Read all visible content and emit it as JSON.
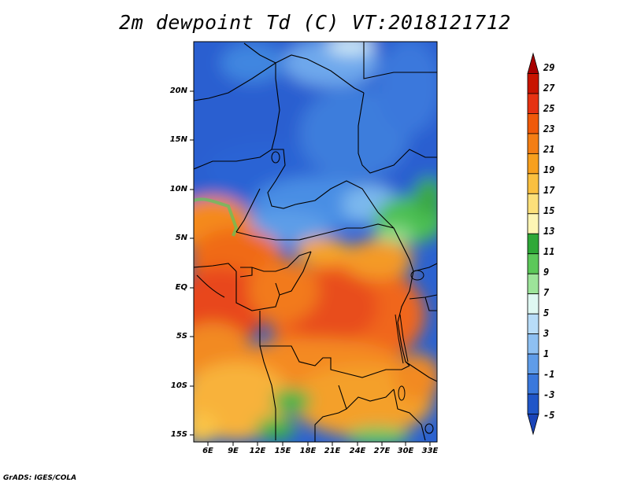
{
  "title": "2m dewpoint Td (C) VT:2018121712",
  "credit": "GrADS: IGES/COLA",
  "map": {
    "lat_labels": [
      "20N",
      "15N",
      "10N",
      "5N",
      "EQ",
      "5S",
      "10S",
      "15S"
    ],
    "lon_labels": [
      "6E",
      "9E",
      "12E",
      "15E",
      "18E",
      "21E",
      "24E",
      "27E",
      "30E",
      "33E"
    ]
  },
  "colorbar": {
    "labels": [
      "29",
      "27",
      "25",
      "23",
      "21",
      "19",
      "17",
      "15",
      "13",
      "11",
      "9",
      "7",
      "5",
      "3",
      "1",
      "-1",
      "-3",
      "-5"
    ],
    "colors": [
      "#a80000",
      "#c81400",
      "#e63212",
      "#f05a0a",
      "#f47e14",
      "#f7a01e",
      "#fac040",
      "#fce07a",
      "#fdf5b4",
      "#2fa838",
      "#5cc85a",
      "#9de49a",
      "#dff8f2",
      "#b8dcf8",
      "#8ec0f2",
      "#5f9ce8",
      "#3a78dc",
      "#2056c8",
      "#1a44b8"
    ]
  }
}
